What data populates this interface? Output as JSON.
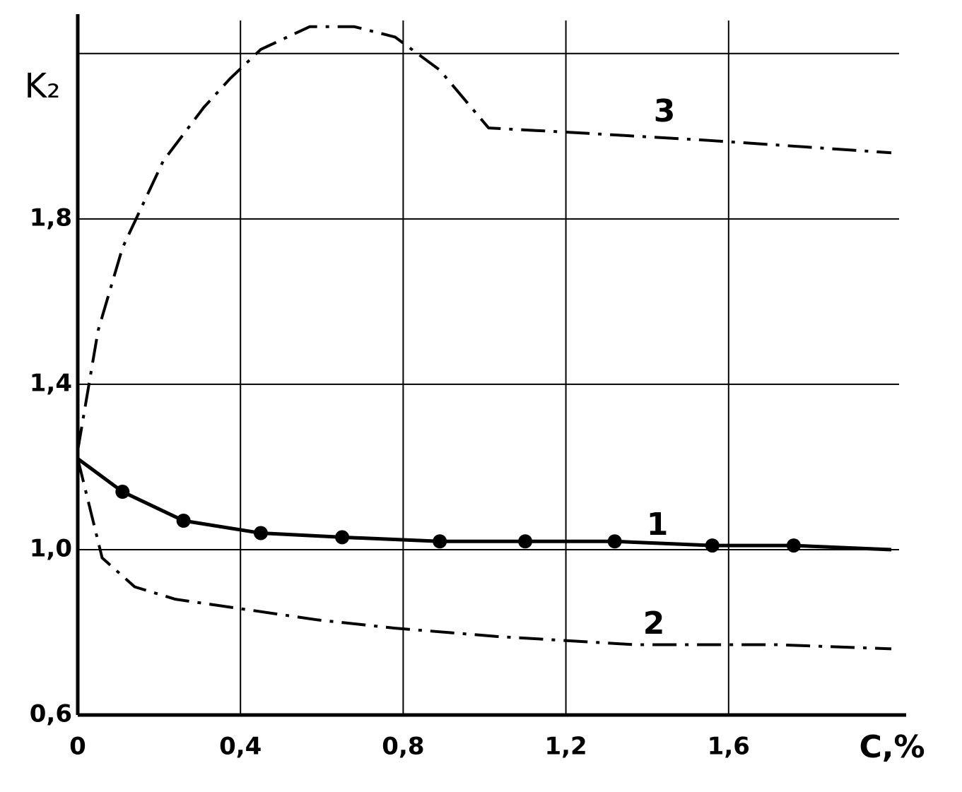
{
  "chart_data": {
    "type": "line",
    "y_label": "K₂",
    "x_label": "C,%",
    "xlim": [
      0,
      2.0
    ],
    "ylim": [
      0.6,
      2.28
    ],
    "xticks": [
      0,
      {
        "value": 0.4,
        "label": "0,4"
      },
      {
        "value": 0.8,
        "label": "0,8"
      },
      {
        "value": 1.2,
        "label": "1,2"
      },
      {
        "value": 1.6,
        "label": "1,6"
      }
    ],
    "yticks": [
      {
        "value": 0.6,
        "label": "0,6"
      },
      {
        "value": 1.0,
        "label": "1,0"
      },
      {
        "value": 1.4,
        "label": "1,4"
      },
      {
        "value": 1.8,
        "label": "1,8"
      },
      {
        "value": 2.2,
        "label": null
      }
    ],
    "grid": true,
    "series": [
      {
        "name": "1",
        "color": "#000000",
        "style": "solid-markers",
        "x": [
          0,
          0.11,
          0.26,
          0.45,
          0.65,
          0.89,
          1.1,
          1.32,
          1.56,
          1.76,
          2.0
        ],
        "values": [
          1.22,
          1.14,
          1.07,
          1.04,
          1.03,
          1.02,
          1.02,
          1.02,
          1.01,
          1.01,
          1.0
        ]
      },
      {
        "name": "2",
        "color": "#000000",
        "style": "dash-dot",
        "x": [
          0,
          0.06,
          0.14,
          0.24,
          0.38,
          0.59,
          0.78,
          1.03,
          1.37,
          1.72,
          2.0
        ],
        "values": [
          1.22,
          0.98,
          0.91,
          0.88,
          0.86,
          0.83,
          0.81,
          0.79,
          0.77,
          0.77,
          0.76
        ]
      },
      {
        "name": "3",
        "color": "#000000",
        "style": "dash-dot",
        "x": [
          0,
          0.05,
          0.11,
          0.21,
          0.31,
          0.375,
          0.45,
          0.57,
          0.68,
          0.78,
          0.89,
          1.01,
          1.2,
          1.55,
          2.0
        ],
        "values": [
          1.24,
          1.53,
          1.73,
          1.94,
          2.07,
          2.14,
          2.21,
          2.265,
          2.265,
          2.24,
          2.16,
          2.02,
          2.01,
          1.99,
          1.96
        ]
      }
    ]
  }
}
